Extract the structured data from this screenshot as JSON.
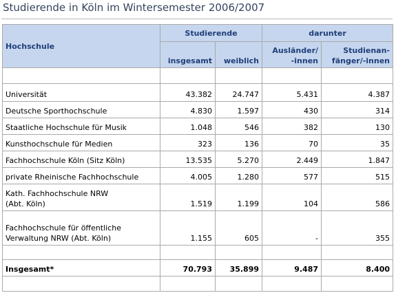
{
  "title": "Studierende in Köln im Wintersemester 2006/2007",
  "table": {
    "header": {
      "hochschule": "Hochschule",
      "studierende": "Studierende",
      "darunter": "darunter",
      "columns": [
        "insgesamt",
        "weiblich",
        "Ausländer/\n-innen",
        "Studienan-\nfänger/-innen"
      ]
    },
    "rows": [
      [
        "Universität",
        "43.382",
        "24.747",
        "5.431",
        "4.387"
      ],
      [
        "Deutsche Sporthochschule",
        "4.830",
        "1.597",
        "430",
        "314"
      ],
      [
        "Staatliche Hochschule für Musik",
        "1.048",
        "546",
        "382",
        "130"
      ],
      [
        "Kunsthochschule für Medien",
        "323",
        "136",
        "70",
        "35"
      ],
      [
        "Fachhochschule Köln (Sitz Köln)",
        "13.535",
        "5.270",
        "2.449",
        "1.847"
      ],
      [
        "private Rheinische Fachhochschule",
        "4.005",
        "1.280",
        "577",
        "515"
      ],
      [
        "Kath. Fachhochschule NRW\n(Abt. Köln)",
        "1.519",
        "1.199",
        "104",
        "586"
      ],
      [
        "Fachhochschule für öffentliche\nVerwaltung NRW (Abt. Köln)",
        "1.155",
        "605",
        "-",
        "355"
      ]
    ],
    "total": [
      "Insgesamt*",
      "70.793",
      "35.899",
      "9.487",
      "8.400"
    ]
  }
}
